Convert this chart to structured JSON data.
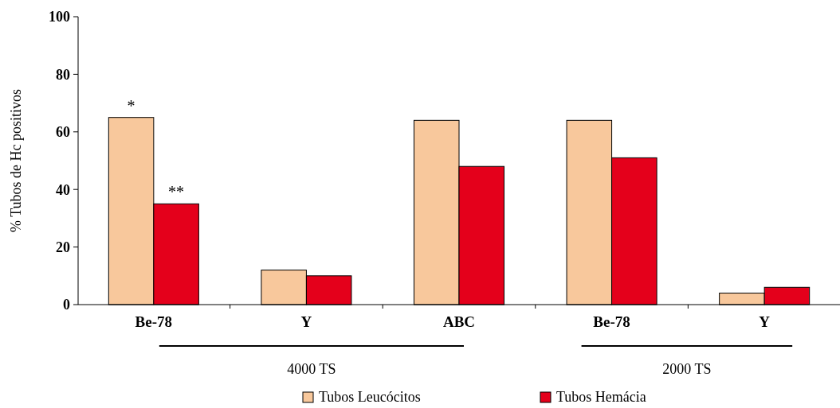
{
  "chart_data": {
    "type": "bar",
    "ylabel": "%  Tubos de Hc positivos",
    "categories": [
      "Be-78",
      "Y",
      "ABC",
      "Be-78",
      "Y"
    ],
    "series": [
      {
        "name": "Tubos Leucócitos",
        "color": "#f8c89c",
        "values": [
          65,
          12,
          64,
          64,
          4
        ]
      },
      {
        "name": "Tubos Hemácia",
        "color": "#e4001b",
        "values": [
          35,
          10,
          48,
          51,
          6
        ]
      }
    ],
    "ylim": [
      0,
      100
    ],
    "yticks": [
      0,
      20,
      40,
      60,
      80,
      100
    ],
    "grid": false,
    "legend": "bottom",
    "annotations": [
      {
        "text": "*",
        "x": "Be-78",
        "y": 65
      },
      {
        "text": "**",
        "x": "Be-78",
        "y": 35
      },
      "4000 TS",
      "2000 TS"
    ]
  }
}
